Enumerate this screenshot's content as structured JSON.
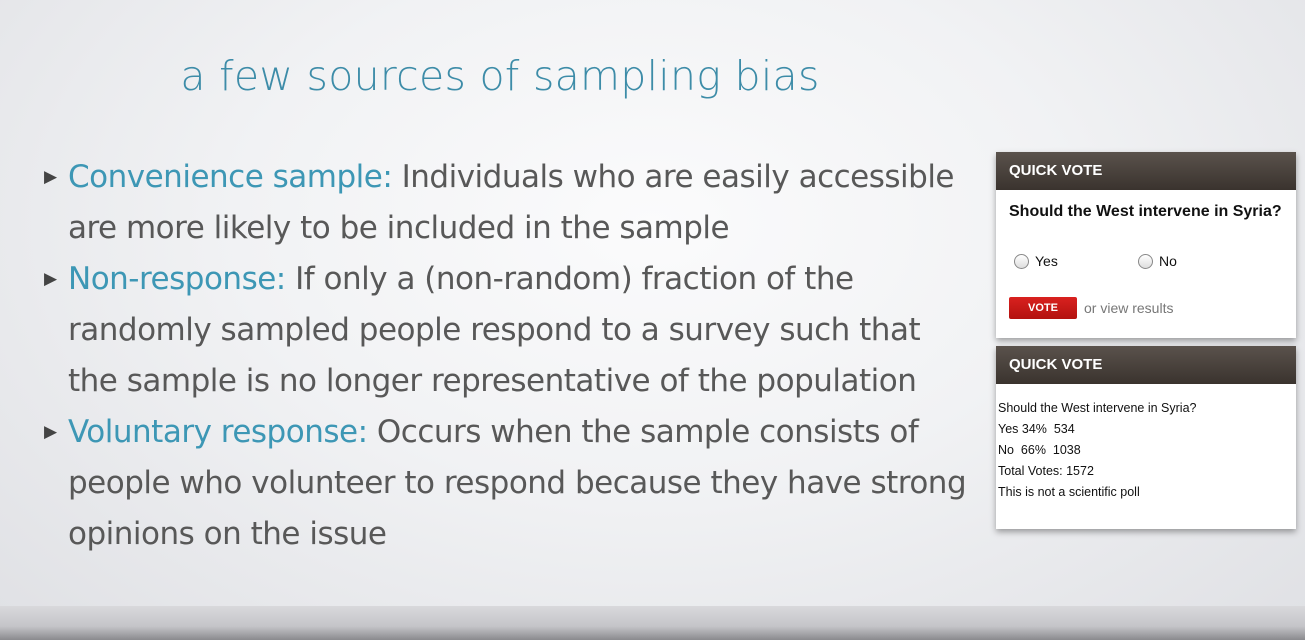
{
  "slide": {
    "title": "a few sources of sampling bias",
    "bullets": [
      {
        "term": "Convenience sample:",
        "text": " Individuals who are easily accessible are more likely to be included in the sample"
      },
      {
        "term": "Non-response:",
        "text": " If only a (non-random) fraction of the randomly sampled people respond to a survey such that the sample is no longer representative of the population"
      },
      {
        "term": "Voluntary response:",
        "text": " Occurs when the sample consists of people who volunteer to respond because they have strong opinions on the issue"
      }
    ]
  },
  "poll_form": {
    "header": "QUICK VOTE",
    "question": "Should the West intervene in Syria?",
    "options": [
      "Yes",
      "No"
    ],
    "vote_label": "VOTE",
    "view_results": "or view results"
  },
  "poll_results": {
    "header": "QUICK VOTE",
    "question": "Should the West intervene in Syria?",
    "yes_line": "Yes 34%  534",
    "no_line": "No  66%  1038",
    "total_line": "Total Votes: 1572",
    "disclaimer": "This is not a scientific poll"
  },
  "colors": {
    "accent": "#3d97b5",
    "body_text": "#585858",
    "vote_button": "#cc1a17",
    "poll_header": "#4a423c"
  }
}
